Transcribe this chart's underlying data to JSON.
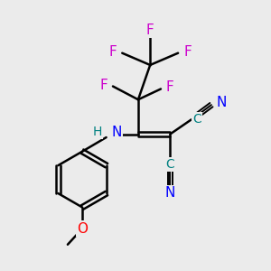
{
  "bg_color": "#ebebeb",
  "atom_colors": {
    "C": "#008080",
    "N": "#0000ff",
    "F": "#cc00cc",
    "O": "#ff0000",
    "H": "#008080",
    "bond": "#000000"
  },
  "figsize": [
    3.0,
    3.0
  ],
  "dpi": 100
}
